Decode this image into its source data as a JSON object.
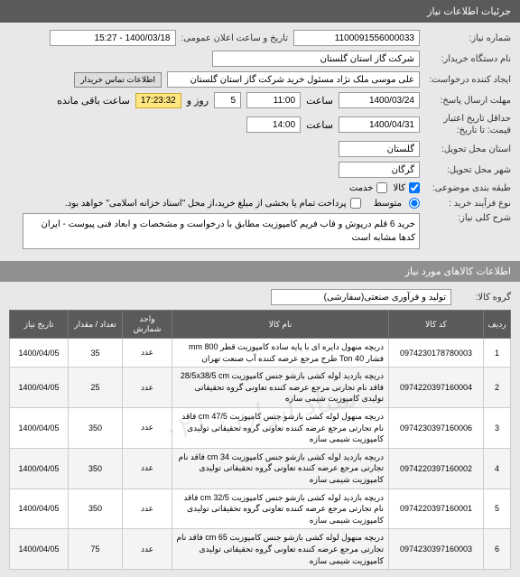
{
  "header": {
    "title": "جرئیات اطلاعات نیاز"
  },
  "form": {
    "need_number_label": "شماره نیاز:",
    "need_number": "1100091556000033",
    "ann_label": "تاریخ و ساعت اعلان عمومی:",
    "ann_value": "1400/03/18 - 15:27",
    "buyer_label": "نام دستگاه خریدار:",
    "buyer": "شرکت گاز استان گلستان",
    "creator_label": "ایجاد کننده درخواست:",
    "creator": "علی موسی ملک نژاد مسئول خرید شرکت گاز استان گلستان",
    "contact_btn": "اطلاعات تماس خریدار",
    "deadline_label": "مهلت ارسال پاسخ:",
    "deadline_date": "1400/03/24",
    "time_label": "ساعت",
    "deadline_time": "11:00",
    "remaining_days": "5",
    "day_and": "روز و",
    "remaining_clock": "17:23:32",
    "remaining_text": "ساعت باقی مانده",
    "valid_label": "حداقل تاریخ اعتبار قیمت: تا تاریخ:",
    "valid_date": "1400/04/31",
    "valid_time": "14:00",
    "delivery_label": "استان محل تحویل:",
    "delivery": "گلستان",
    "city_label": "شهر محل تحویل:",
    "city": "گرگان",
    "budget_label": "طبقه بندی موضوعی:",
    "budget_goods": "کالا",
    "budget_service": "خدمت",
    "process_label": "نوع فرآیند خرید :",
    "process_mid": "متوسط",
    "process_note": "پرداخت تمام یا بخشی از مبلغ خرید،از محل \"اسناد خزانه اسلامی\" خواهد بود.",
    "main_desc_label": "شرح کلی نیاز:",
    "main_desc": "خرید 6 قلم درپوش و قاب فریم کامپوزیت مطابق با درخواست و مشخصات و ابعاد  فنی پیوست - ایران کدها مشابه است"
  },
  "sub_header": {
    "title": "اطلاعات کالاهای مورد نیاز"
  },
  "group": {
    "label": "گروه کالا:",
    "value": "تولید و فرآوری صنعتی(سفارشی)"
  },
  "table": {
    "cols": [
      "ردیف",
      "کد کالا",
      "نام کالا",
      "واحد شمارش",
      "تعداد / مقدار",
      "تاریخ نیاز"
    ],
    "rows": [
      {
        "n": "1",
        "code": "0974230178780003",
        "name": "دریچه منهول دایره ای با پایه ساده کامپوزیت قطر mm 800 فشار Ton 40 طرح مرجع عرضه کننده آب صنعت تهران",
        "unit": "عدد",
        "qty": "35",
        "date": "1400/04/05"
      },
      {
        "n": "2",
        "code": "0974220397160004",
        "name": "دریچه بازدید لوله کشی بازشو جنس کامپوزیت 28/5x38/5 cm فاقد نام تجارتی مرجع عرضه کننده تعاونی گروه تحقیقاتی تولیدی کامپوزیت شیمی سازه",
        "unit": "عدد",
        "qty": "25",
        "date": "1400/04/05"
      },
      {
        "n": "3",
        "code": "0974230397160006",
        "name": "دریچه منهول لوله کشی بازشو جنس کامپوزیت 47/5 cm فاقد نام تجارتی مرجع عرضه کننده تعاونی گروه تحقیقاتی تولیدی کامپوزیت شیمی سازه",
        "unit": "عدد",
        "qty": "350",
        "date": "1400/04/05"
      },
      {
        "n": "4",
        "code": "0974220397160002",
        "name": "دریچه بازدید لوله کشی بازشو جنس کامپوزیت 34 cm فاقد نام تجارتی مرجع عرضه کننده تعاونی گروه تحقیقاتی تولیدی کامپوزیت شیمی سازه",
        "unit": "عدد",
        "qty": "350",
        "date": "1400/04/05"
      },
      {
        "n": "5",
        "code": "0974220397160001",
        "name": "دریچه بازدید لوله کشی بازشو جنس کامپوزیت 32/5 cm فاقد نام تجارتی مرجع عرضه کننده تعاونی گروه تحقیقاتی تولیدی کامپوزیت شیمی سازه",
        "unit": "عدد",
        "qty": "350",
        "date": "1400/04/05"
      },
      {
        "n": "6",
        "code": "0974230397160003",
        "name": "دریچه منهول لوله کشی بازشو جنس کامپوزیت 65 cm فاقد نام تجارتی مرجع عرضه کننده تعاونی گروه تحقیقاتی تولیدی کامپوزیت شیمی سازه",
        "unit": "عدد",
        "qty": "75",
        "date": "1400/04/05"
      }
    ]
  }
}
